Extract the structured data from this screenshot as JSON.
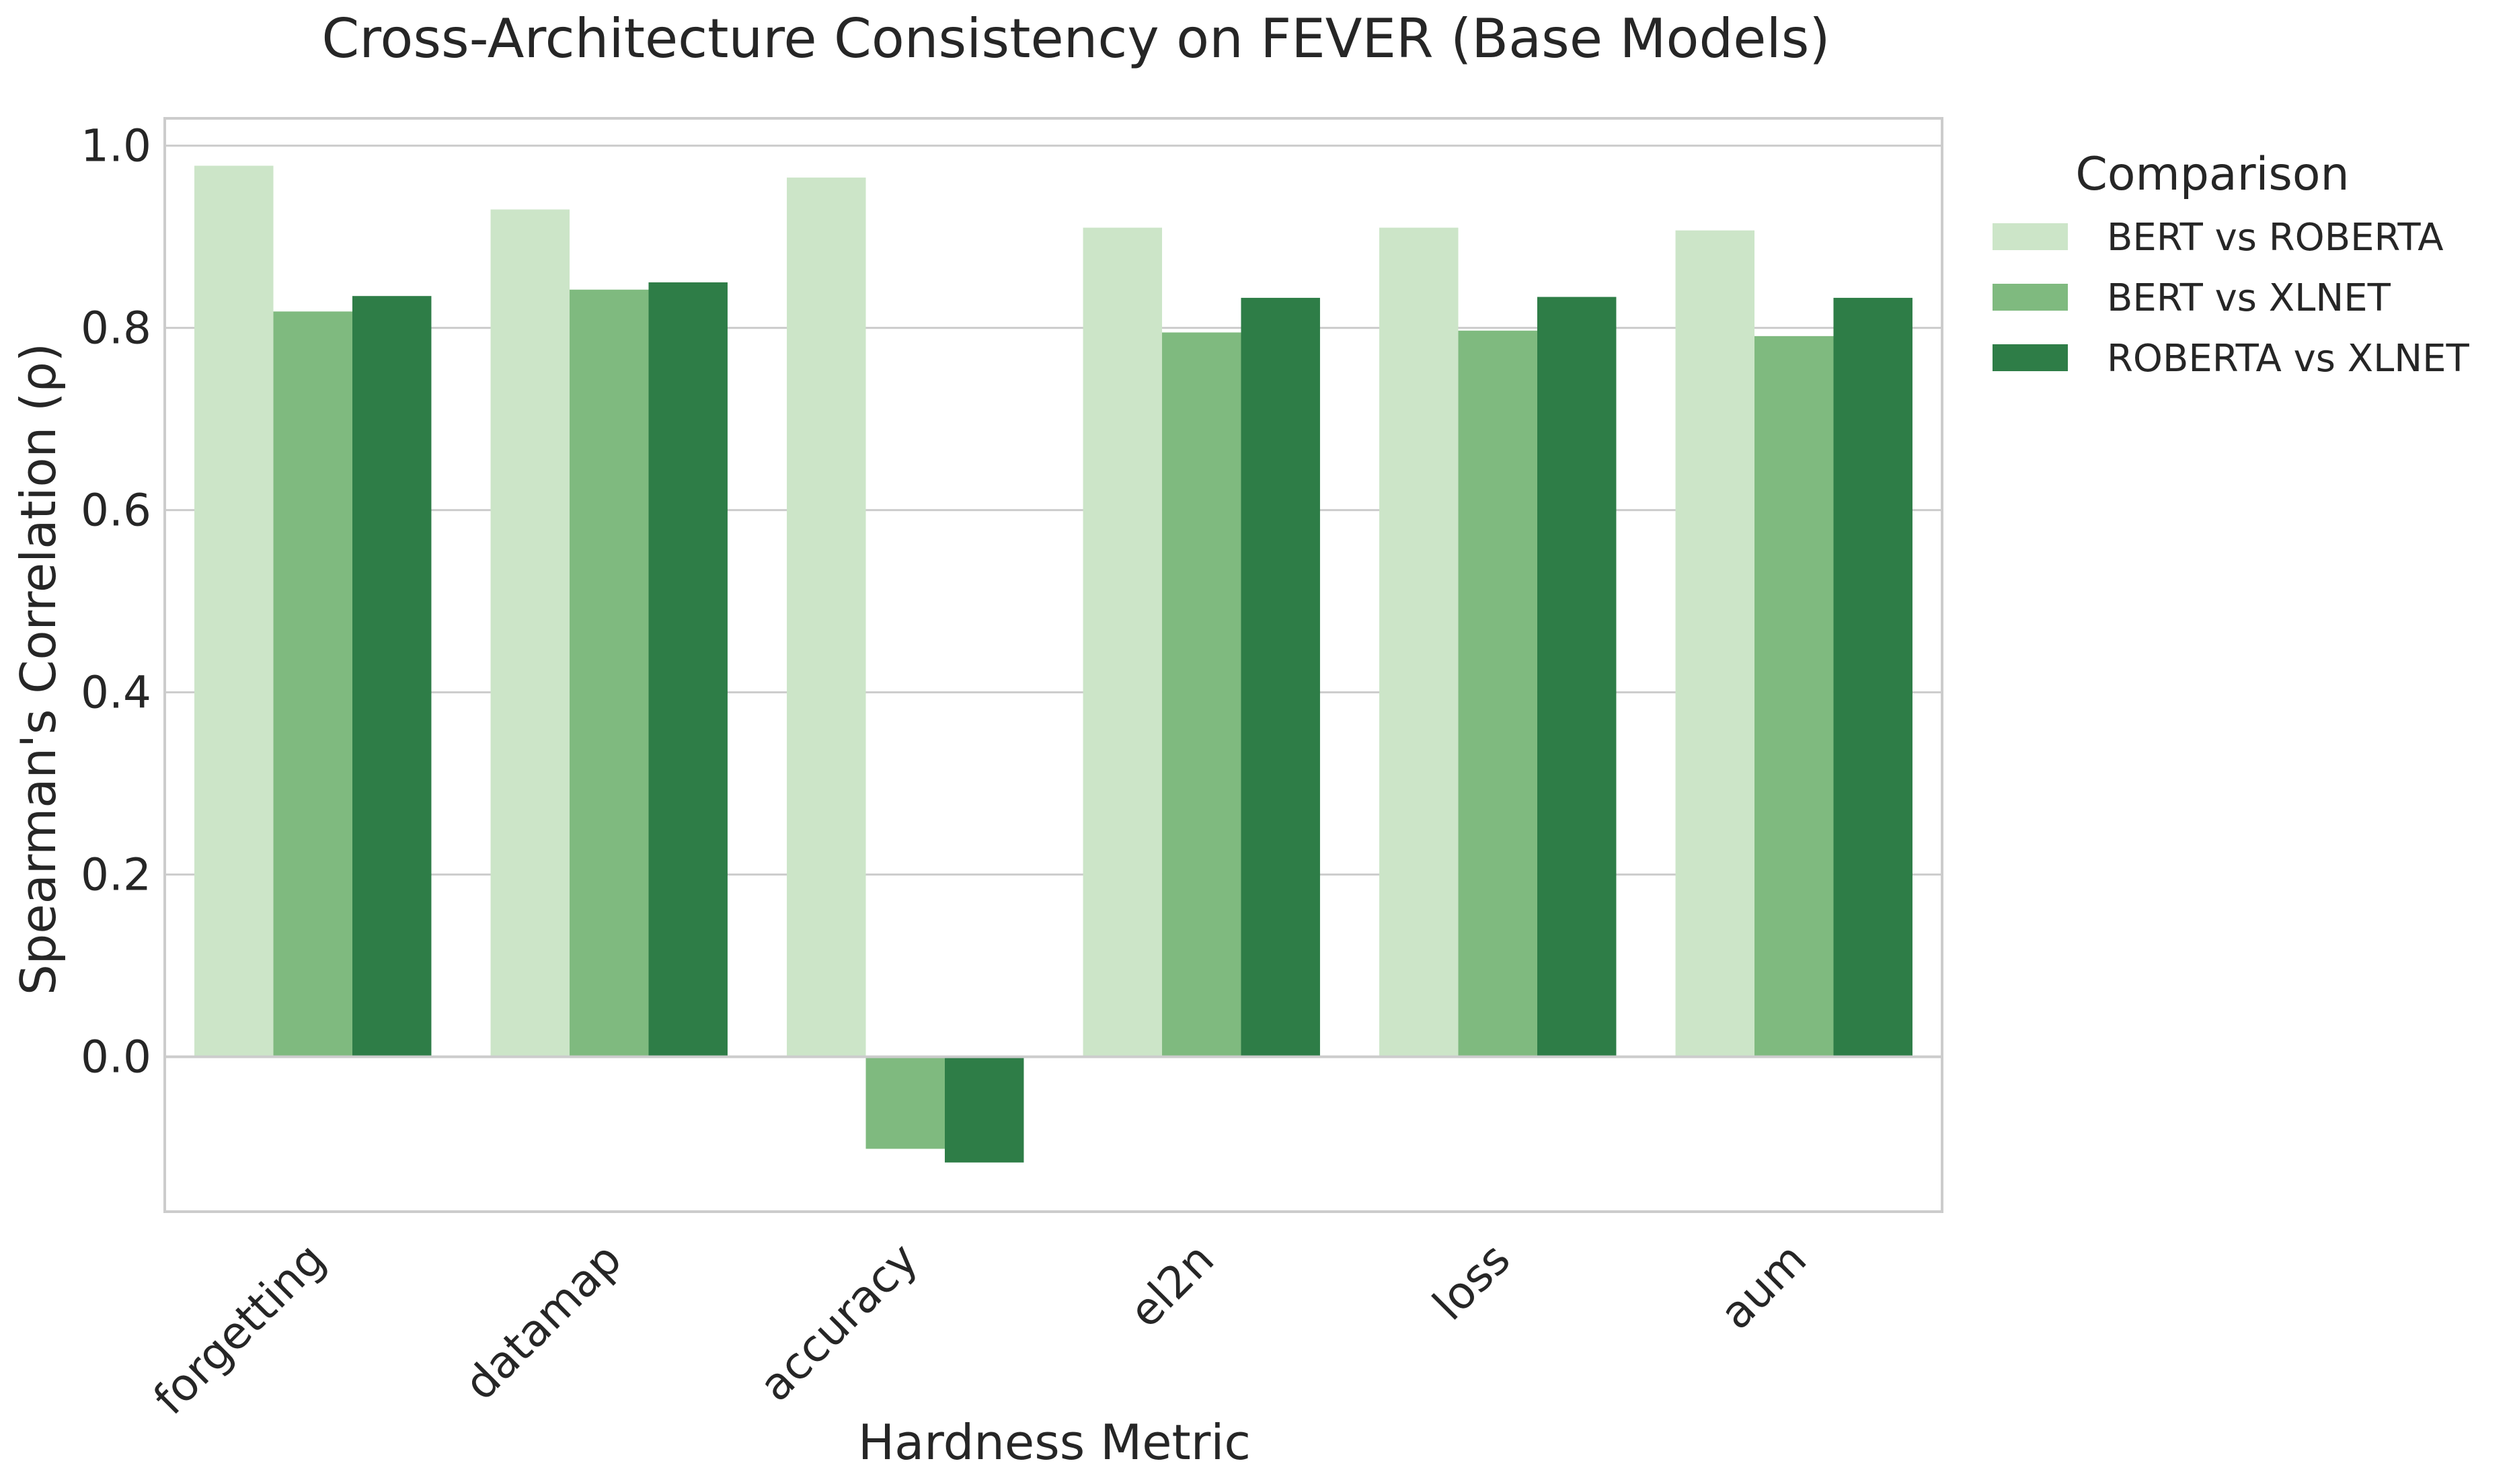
{
  "chart_data": {
    "type": "bar",
    "title": "Cross-Architecture Consistency on FEVER (Base Models)",
    "xlabel": "Hardness Metric",
    "ylabel": "Spearman's Correlation (ρ)",
    "ylim": [
      -0.17,
      1.03
    ],
    "yticks": [
      0.0,
      0.2,
      0.4,
      0.6,
      0.8,
      1.0
    ],
    "ytick_labels": [
      "0.0",
      "0.2",
      "0.4",
      "0.6",
      "0.8",
      "1.0"
    ],
    "grid": true,
    "categories": [
      "forgetting",
      "datamap",
      "accuracy",
      "el2n",
      "loss",
      "aum"
    ],
    "legend": {
      "title": "Comparison",
      "placement": "outside-top-right"
    },
    "series": [
      {
        "name": "BERT vs ROBERTA",
        "color": "#cce5c8",
        "values": [
          0.978,
          0.93,
          0.965,
          0.91,
          0.91,
          0.907
        ]
      },
      {
        "name": "BERT vs XLNET",
        "color": "#7fba7f",
        "values": [
          0.818,
          0.842,
          -0.101,
          0.795,
          0.797,
          0.791
        ]
      },
      {
        "name": "ROBERTA vs XLNET",
        "color": "#2e7d47",
        "values": [
          0.835,
          0.85,
          -0.116,
          0.833,
          0.834,
          0.833
        ]
      }
    ]
  }
}
